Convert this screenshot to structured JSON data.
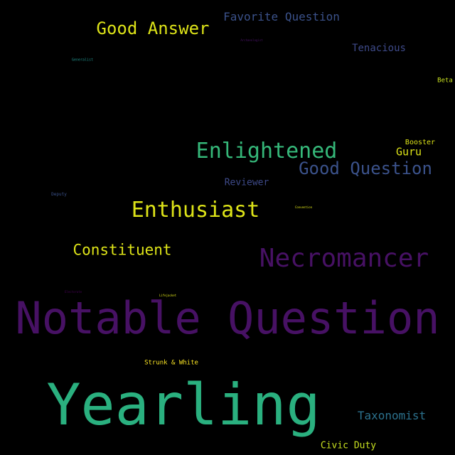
{
  "background_color": "#000000",
  "words": [
    {
      "key": "notable-question",
      "text": "Notable Question",
      "color": "#471164"
    },
    {
      "key": "yearling",
      "text": "Yearling",
      "color": "#2ab07f"
    },
    {
      "key": "necromancer",
      "text": "Necromancer",
      "color": "#471164"
    },
    {
      "key": "enlightened",
      "text": "Enlightened",
      "color": "#35b779"
    },
    {
      "key": "enthusiast",
      "text": "Enthusiast",
      "color": "#dde318"
    },
    {
      "key": "good-question",
      "text": "Good Question",
      "color": "#3b528b"
    },
    {
      "key": "good-answer",
      "text": "Good Answer",
      "color": "#dde318"
    },
    {
      "key": "constituent",
      "text": "Constituent",
      "color": "#dde318"
    },
    {
      "key": "favorite-question",
      "text": "Favorite Question",
      "color": "#3b528b"
    },
    {
      "key": "taxonomist",
      "text": "Taxonomist",
      "color": "#2c728e"
    },
    {
      "key": "tenacious",
      "text": "Tenacious",
      "color": "#3e4a89"
    },
    {
      "key": "guru",
      "text": "Guru",
      "color": "#dde318"
    },
    {
      "key": "reviewer",
      "text": "Reviewer",
      "color": "#3e4a89"
    },
    {
      "key": "civic-duty",
      "text": "Civic Duty",
      "color": "#c8e020"
    },
    {
      "key": "booster",
      "text": "Booster",
      "color": "#dde318"
    },
    {
      "key": "strunk-white",
      "text": "Strunk & White",
      "color": "#fde725"
    },
    {
      "key": "beta",
      "text": "Beta",
      "color": "#c8e020"
    },
    {
      "key": "generalist",
      "text": "Generalist",
      "color": "#21918c"
    },
    {
      "key": "deputy",
      "text": "Deputy",
      "color": "#3b528b"
    },
    {
      "key": "archaeologist",
      "text": "Archaeologist",
      "color": "#471164"
    },
    {
      "key": "lifejacket",
      "text": "Lifejacket",
      "color": "#dde318"
    },
    {
      "key": "convention",
      "text": "Convention",
      "color": "#dde318"
    },
    {
      "key": "electorate",
      "text": "Electorate",
      "color": "#440154"
    }
  ]
}
